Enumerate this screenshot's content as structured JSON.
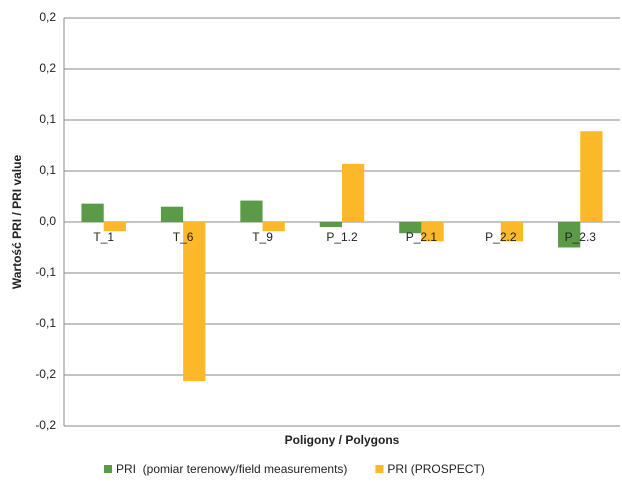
{
  "chart_data": {
    "type": "bar",
    "y_label": "Wartość PRI / PRI value",
    "x_label": "Poligony / Polygons",
    "categories": [
      "T_1",
      "T_6",
      "T_9",
      "P_1.2",
      "P_2.1",
      "P_2.2",
      "P_2.3"
    ],
    "series": [
      {
        "name": "PRI  (pomiar terenowy/field measurements)",
        "color": "#5b9a47",
        "values": [
          0.018,
          0.015,
          0.021,
          -0.005,
          -0.011,
          0,
          -0.025
        ]
      },
      {
        "name": "PRI (PROSPECT)",
        "color": "#fbb829",
        "values": [
          -0.009,
          -0.156,
          -0.009,
          0.057,
          -0.019,
          -0.019,
          0.089
        ]
      }
    ],
    "ylim": [
      -0.2,
      0.2
    ],
    "yticks": [
      {
        "value": -0.2,
        "label": "-0,2"
      },
      {
        "value": -0.15,
        "label": "-0,2"
      },
      {
        "value": -0.1,
        "label": "-0,1"
      },
      {
        "value": -0.05,
        "label": "-0,1"
      },
      {
        "value": 0,
        "label": "0,0"
      },
      {
        "value": 0.05,
        "label": "0,1"
      },
      {
        "value": 0.1,
        "label": "0,1"
      },
      {
        "value": 0.15,
        "label": "0,2"
      },
      {
        "value": 0.2,
        "label": "0,2"
      }
    ],
    "grid": true
  }
}
